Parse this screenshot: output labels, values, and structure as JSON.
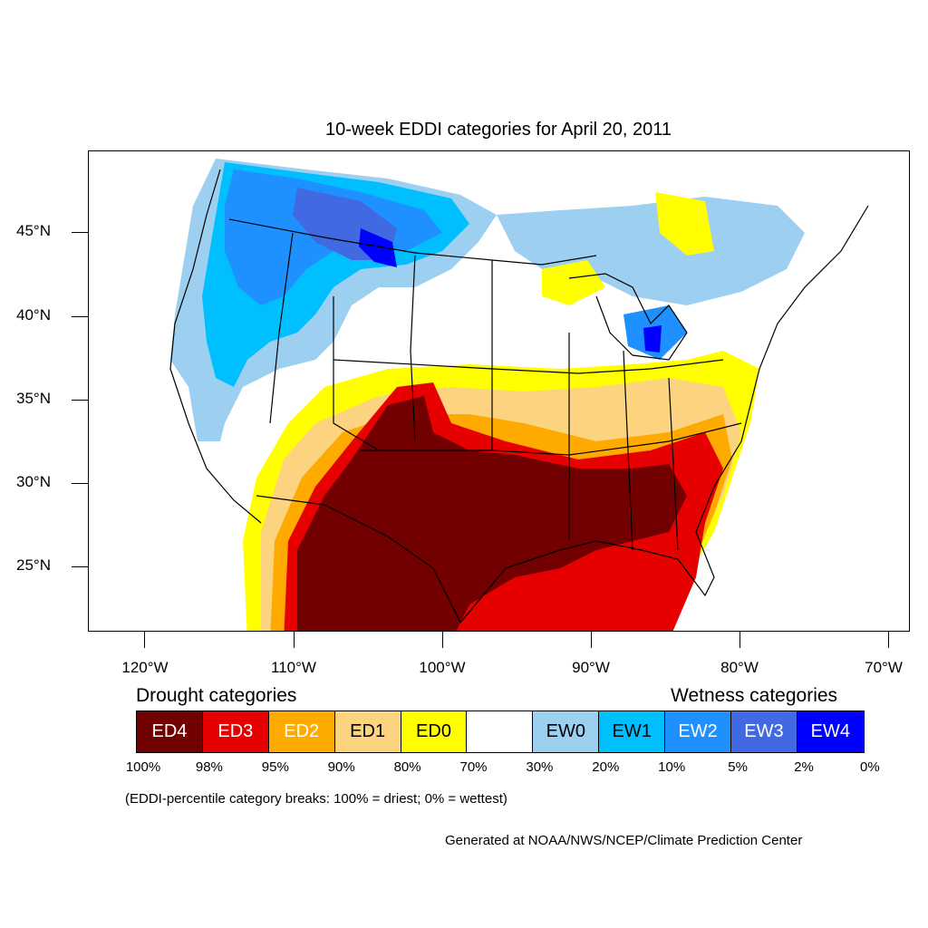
{
  "title": "10-week EDDI categories for April 20, 2011",
  "lat_labels": [
    "45°N",
    "40°N",
    "35°N",
    "30°N",
    "25°N"
  ],
  "lon_labels": [
    "120°W",
    "110°W",
    "100°W",
    "90°W",
    "80°W",
    "70°W"
  ],
  "legend": {
    "drought_heading": "Drought categories",
    "wetness_heading": "Wetness categories",
    "categories": [
      {
        "label": "ED4",
        "color": "#730000",
        "text_color": "#ffffff"
      },
      {
        "label": "ED3",
        "color": "#e60000",
        "text_color": "#ffffff"
      },
      {
        "label": "ED2",
        "color": "#ffaa00",
        "text_color": "#ffffff"
      },
      {
        "label": "ED1",
        "color": "#fcd37f",
        "text_color": "#000000"
      },
      {
        "label": "ED0",
        "color": "#ffff00",
        "text_color": "#000000"
      },
      {
        "label": "",
        "color": "#ffffff",
        "text_color": "#000000"
      },
      {
        "label": "EW0",
        "color": "#9dd0f0",
        "text_color": "#000000"
      },
      {
        "label": "EW1",
        "color": "#00bfff",
        "text_color": "#000000"
      },
      {
        "label": "EW2",
        "color": "#1e90ff",
        "text_color": "#ffffff"
      },
      {
        "label": "EW3",
        "color": "#4169e1",
        "text_color": "#ffffff"
      },
      {
        "label": "EW4",
        "color": "#0000ff",
        "text_color": "#ffffff"
      }
    ],
    "percent_breaks": [
      "100%",
      "98%",
      "95%",
      "90%",
      "80%",
      "70%",
      "30%",
      "20%",
      "10%",
      "5%",
      "2%",
      "0%"
    ]
  },
  "note": "(EDDI-percentile category breaks: 100% = driest; 0% = wettest)",
  "credit": "Generated at NOAA/NWS/NCEP/Climate Prediction Center"
}
